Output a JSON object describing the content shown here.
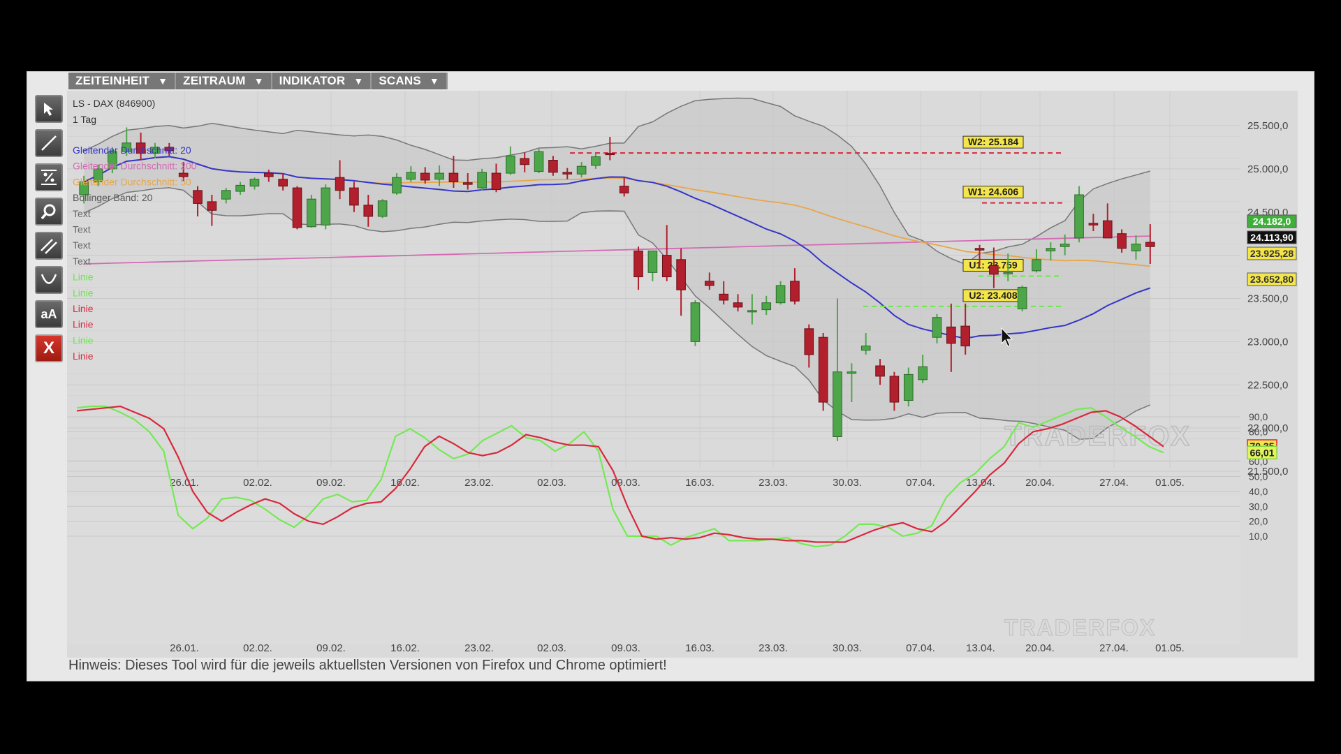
{
  "menu": [
    {
      "label": "ZEITEINHEIT",
      "arrow": "▼"
    },
    {
      "label": "ZEITRAUM",
      "arrow": "▼"
    },
    {
      "label": "INDIKATOR",
      "arrow": "▼"
    },
    {
      "label": "SCANS",
      "arrow": "▼"
    }
  ],
  "toolbar": {
    "tools": [
      "pointer-arrow-icon",
      "line-tool-icon",
      "percent-tool-icon",
      "zoom-search-icon",
      "parallel-lines-icon",
      "arc-tool-icon",
      "text-tool-icon",
      "delete-x-icon"
    ],
    "text_tool_label": "aA",
    "delete_label": "X"
  },
  "chart": {
    "instrument": "LS - DAX (846900)",
    "timeframe": "1 Tag",
    "legend": [
      {
        "label": "Gleitender Durchschnitt: 20",
        "color": "#3535c8"
      },
      {
        "label": "Gleitender Durchschnitt: 200",
        "color": "#d36bb4"
      },
      {
        "label": "Gleitender Durchschnitt: 50",
        "color": "#e8a64a"
      },
      {
        "label": "Bollinger Band: 20",
        "color": "#555555"
      },
      {
        "label": "Text",
        "color": "#666666"
      },
      {
        "label": "Text",
        "color": "#666666"
      },
      {
        "label": "Text",
        "color": "#666666"
      },
      {
        "label": "Text",
        "color": "#666666"
      },
      {
        "label": "Linie",
        "color": "#6ae84a"
      },
      {
        "label": "Linie",
        "color": "#6ae84a"
      },
      {
        "label": "Linie",
        "color": "#d8283c"
      },
      {
        "label": "Linie",
        "color": "#d8283c"
      },
      {
        "label": "Linie",
        "color": "#6ae84a"
      },
      {
        "label": "Linie",
        "color": "#d8283c"
      }
    ],
    "levels": [
      {
        "label": "W2: 25.184",
        "value": 25184,
        "color": "#d8283c"
      },
      {
        "label": "W1: 24.606",
        "value": 24606,
        "color": "#d8283c"
      },
      {
        "label": "U1: 23.759",
        "value": 23759,
        "color": "#6ae84a"
      },
      {
        "label": "U2: 23.408",
        "value": 23408,
        "color": "#6ae84a"
      }
    ],
    "price_tags": [
      {
        "label": "24.182,0",
        "value": 24182,
        "bg": "#3fae3a",
        "fg": "#ffffff"
      },
      {
        "label": "24.113,90",
        "value": 24113.9,
        "bg": "#111111",
        "fg": "#ffffff"
      },
      {
        "label": "23.925,28",
        "value": 23925.28,
        "bg": "#f3e54a",
        "fg": "#333333"
      },
      {
        "label": "23.652,80",
        "value": 23652.8,
        "bg": "#f3e54a",
        "fg": "#333333"
      }
    ],
    "watermark": "TRADERFOX",
    "dates": [
      "26.01.",
      "02.02.",
      "09.02.",
      "16.02.",
      "23.02.",
      "02.03.",
      "09.03.",
      "16.03.",
      "23.03.",
      "30.03.",
      "07.04.",
      "13.04.",
      "20.04.",
      "27.04.",
      "01.05."
    ],
    "price_ticks": [
      "25.500,0",
      "25.000,0",
      "24.500,0",
      "24.000,0",
      "23.500,0",
      "23.000,0",
      "22.500,0",
      "22.000,0",
      "21.500,0"
    ],
    "osc_ticks": [
      "90,0",
      "80,0",
      "60,0",
      "50,0",
      "40,0",
      "30,0",
      "20,0",
      "10,0"
    ],
    "osc_tags": [
      {
        "label": "70,35",
        "value": 70.35,
        "bg": "#f3e54a",
        "border": "#d8283c"
      },
      {
        "label": "66,01",
        "value": 66.01,
        "bg": "#dff55a",
        "border": "#8bd34a"
      }
    ]
  },
  "chart_data": {
    "type": "candlestick",
    "title": "LS - DAX (846900)",
    "timeframe": "1 Tag",
    "ylim": [
      21500,
      25700
    ],
    "x_ticks": [
      "26.01.",
      "02.02.",
      "09.02.",
      "16.02.",
      "23.02.",
      "02.03.",
      "09.03.",
      "16.03.",
      "23.03.",
      "30.03.",
      "07.04.",
      "13.04.",
      "20.04.",
      "27.04.",
      "01.05."
    ],
    "candles": [
      [
        24700,
        24920,
        24600,
        24850
      ],
      [
        24850,
        25050,
        24800,
        25000
      ],
      [
        25000,
        25250,
        24950,
        25200
      ],
      [
        25200,
        25480,
        25150,
        25300
      ],
      [
        25300,
        25420,
        25100,
        25180
      ],
      [
        25180,
        25300,
        25120,
        25250
      ],
      [
        25250,
        25300,
        25150,
        25210
      ],
      [
        24950,
        25080,
        24860,
        24910
      ],
      [
        24750,
        24800,
        24450,
        24600
      ],
      [
        24620,
        24700,
        24340,
        24520
      ],
      [
        24650,
        24780,
        24600,
        24750
      ],
      [
        24740,
        24850,
        24700,
        24810
      ],
      [
        24800,
        24900,
        24760,
        24880
      ],
      [
        24950,
        24990,
        24850,
        24910
      ],
      [
        24880,
        24950,
        24750,
        24800
      ],
      [
        24780,
        24800,
        24300,
        24320
      ],
      [
        24330,
        24700,
        24320,
        24650
      ],
      [
        24350,
        24820,
        24300,
        24780
      ],
      [
        24900,
        25100,
        24650,
        24750
      ],
      [
        24780,
        24850,
        24500,
        24580
      ],
      [
        24580,
        24700,
        24330,
        24450
      ],
      [
        24450,
        24650,
        24430,
        24630
      ],
      [
        24720,
        24950,
        24700,
        24900
      ],
      [
        24880,
        25030,
        24850,
        24960
      ],
      [
        24950,
        25020,
        24830,
        24870
      ],
      [
        24880,
        25040,
        24800,
        24950
      ],
      [
        24950,
        25150,
        24780,
        24850
      ],
      [
        24840,
        24950,
        24760,
        24820
      ],
      [
        24780,
        25000,
        24750,
        24960
      ],
      [
        24950,
        25060,
        24730,
        24760
      ],
      [
        24950,
        25260,
        24930,
        25150
      ],
      [
        25120,
        25190,
        24960,
        25050
      ],
      [
        24970,
        25230,
        24950,
        25200
      ],
      [
        25100,
        25150,
        24920,
        24960
      ],
      [
        24960,
        25010,
        24880,
        24940
      ],
      [
        24940,
        25080,
        24900,
        25030
      ],
      [
        25040,
        25180,
        25000,
        25140
      ],
      [
        25180,
        25370,
        25100,
        25170
      ],
      [
        24800,
        24900,
        24680,
        24720
      ],
      [
        24050,
        24100,
        23600,
        23750
      ],
      [
        23800,
        24050,
        23700,
        24050
      ],
      [
        24000,
        24350,
        23700,
        23750
      ],
      [
        23950,
        24080,
        23300,
        23600
      ],
      [
        23000,
        23480,
        22950,
        23450
      ],
      [
        23700,
        23800,
        23600,
        23650
      ],
      [
        23550,
        23700,
        23430,
        23480
      ],
      [
        23450,
        23550,
        23350,
        23400
      ],
      [
        23350,
        23550,
        23200,
        23360
      ],
      [
        23370,
        23530,
        23310,
        23450
      ],
      [
        23450,
        23700,
        23430,
        23650
      ],
      [
        23700,
        23850,
        23430,
        23470
      ],
      [
        23150,
        23200,
        22700,
        22850
      ],
      [
        23050,
        23100,
        22200,
        22300
      ],
      [
        21900,
        23500,
        21850,
        22650
      ],
      [
        22650,
        22750,
        22300,
        22650
      ],
      [
        22900,
        23100,
        22850,
        22950
      ],
      [
        22720,
        22800,
        22500,
        22600
      ],
      [
        22600,
        22650,
        22200,
        22300
      ],
      [
        22320,
        22700,
        22250,
        22620
      ],
      [
        22560,
        22850,
        22520,
        22710
      ],
      [
        23050,
        23320,
        22980,
        23280
      ],
      [
        23170,
        23440,
        22650,
        22980
      ],
      [
        23180,
        23440,
        22850,
        22950
      ],
      [
        24080,
        24120,
        23880,
        24060
      ],
      [
        23880,
        24090,
        23620,
        23780
      ],
      [
        23790,
        24020,
        23700,
        23800
      ],
      [
        23380,
        23650,
        23350,
        23630
      ],
      [
        23820,
        24070,
        23800,
        23950
      ],
      [
        24050,
        24150,
        23940,
        24080
      ],
      [
        24100,
        24240,
        24000,
        24130
      ],
      [
        24200,
        24800,
        24150,
        24700
      ],
      [
        24370,
        24480,
        24280,
        24350
      ],
      [
        24400,
        24600,
        24200,
        24200
      ],
      [
        24250,
        24300,
        24030,
        24080
      ],
      [
        24050,
        24230,
        23950,
        24130
      ],
      [
        24150,
        24360,
        23900,
        24100
      ]
    ],
    "ma20_color": "#3535c8",
    "ma200_color": "#d36bb4",
    "ma50_color": "#e8a64a",
    "oscillator": {
      "ylim": [
        0,
        100
      ],
      "fast_color": "#74ea52",
      "slow_color": "#d8283c",
      "fast": [
        96,
        97,
        97,
        93,
        88,
        80,
        67,
        24,
        15,
        22,
        35,
        36,
        34,
        28,
        21,
        16,
        24,
        35,
        38,
        33,
        34,
        48,
        77,
        82,
        76,
        68,
        62,
        65,
        74,
        79,
        84,
        76,
        74,
        67,
        72,
        80,
        67,
        28,
        10,
        10,
        10,
        4,
        9,
        12,
        15,
        7,
        7,
        7,
        8,
        9,
        5,
        3,
        4,
        10,
        18,
        18,
        16,
        10,
        12,
        17,
        36,
        46,
        52,
        62,
        70,
        86,
        83,
        87,
        91,
        95,
        96,
        90,
        83,
        77,
        70,
        66
      ],
      "slow": [
        94,
        95,
        96,
        97,
        93,
        89,
        82,
        63,
        40,
        26,
        20,
        26,
        31,
        35,
        32,
        25,
        20,
        18,
        23,
        29,
        32,
        33,
        42,
        55,
        70,
        77,
        72,
        66,
        64,
        66,
        71,
        78,
        76,
        73,
        71,
        71,
        70,
        54,
        30,
        10,
        8,
        9,
        8,
        9,
        12,
        11,
        9,
        8,
        8,
        7,
        7,
        6,
        6,
        6,
        10,
        14,
        17,
        19,
        15,
        13,
        20,
        30,
        40,
        51,
        59,
        72,
        80,
        82,
        85,
        89,
        93,
        94,
        90,
        84,
        77,
        70
      ]
    }
  },
  "hint": "Hinweis: Dieses Tool wird für die jeweils aktuellsten Versionen von Firefox und Chrome optimiert!"
}
